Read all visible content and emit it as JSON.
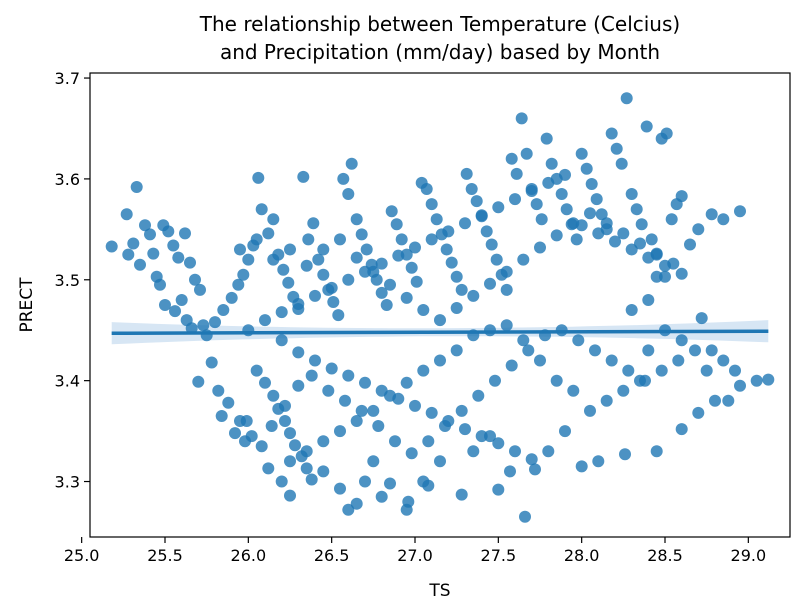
{
  "chart_data": {
    "type": "scatter",
    "title": "The relationship between Temperature (Celcius)",
    "subtitle": "and Precipitation (mm/day) based by Month",
    "xlabel": "TS",
    "ylabel": "PRECT",
    "xlim": [
      25.05,
      29.25
    ],
    "ylim": [
      3.245,
      3.705
    ],
    "xticks": [
      25.0,
      25.5,
      26.0,
      26.5,
      27.0,
      27.5,
      28.0,
      28.5,
      29.0
    ],
    "xtick_labels": [
      "25.0",
      "25.5",
      "26.0",
      "26.5",
      "27.0",
      "27.5",
      "28.0",
      "28.5",
      "29.0"
    ],
    "yticks": [
      3.3,
      3.4,
      3.5,
      3.6,
      3.7
    ],
    "ytick_labels": [
      "3.3",
      "3.4",
      "3.5",
      "3.6",
      "3.7"
    ],
    "grid": false,
    "legend": "none",
    "colors": {
      "points": "#1f77b4",
      "line": "#1f77b4",
      "band": "#c6dbef"
    },
    "regression": {
      "x": [
        25.18,
        29.12
      ],
      "y": [
        3.447,
        3.449
      ],
      "ci_half_width_ends": 0.011,
      "ci_half_width_mid": 0.004
    },
    "points": [
      [
        25.18,
        3.533
      ],
      [
        25.27,
        3.565
      ],
      [
        25.33,
        3.592
      ],
      [
        25.28,
        3.525
      ],
      [
        25.31,
        3.536
      ],
      [
        25.35,
        3.515
      ],
      [
        25.38,
        3.554
      ],
      [
        25.41,
        3.545
      ],
      [
        25.43,
        3.526
      ],
      [
        25.45,
        3.503
      ],
      [
        25.47,
        3.495
      ],
      [
        25.49,
        3.554
      ],
      [
        25.52,
        3.548
      ],
      [
        25.55,
        3.534
      ],
      [
        25.58,
        3.522
      ],
      [
        25.62,
        3.546
      ],
      [
        25.65,
        3.517
      ],
      [
        25.68,
        3.5
      ],
      [
        25.71,
        3.49
      ],
      [
        25.73,
        3.455
      ],
      [
        25.7,
        3.399
      ],
      [
        25.78,
        3.418
      ],
      [
        25.82,
        3.39
      ],
      [
        25.84,
        3.365
      ],
      [
        25.88,
        3.378
      ],
      [
        25.92,
        3.348
      ],
      [
        25.95,
        3.36
      ],
      [
        25.98,
        3.34
      ],
      [
        25.5,
        3.475
      ],
      [
        25.56,
        3.469
      ],
      [
        25.6,
        3.48
      ],
      [
        25.63,
        3.46
      ],
      [
        25.66,
        3.452
      ],
      [
        25.75,
        3.445
      ],
      [
        25.8,
        3.458
      ],
      [
        25.85,
        3.47
      ],
      [
        25.9,
        3.482
      ],
      [
        25.94,
        3.495
      ],
      [
        25.97,
        3.505
      ],
      [
        26.0,
        3.52
      ],
      [
        26.03,
        3.534
      ],
      [
        26.06,
        3.601
      ],
      [
        26.08,
        3.57
      ],
      [
        26.12,
        3.546
      ],
      [
        26.15,
        3.56
      ],
      [
        26.18,
        3.525
      ],
      [
        26.21,
        3.51
      ],
      [
        26.24,
        3.497
      ],
      [
        26.27,
        3.483
      ],
      [
        26.3,
        3.471
      ],
      [
        26.33,
        3.602
      ],
      [
        26.36,
        3.54
      ],
      [
        26.39,
        3.556
      ],
      [
        26.42,
        3.52
      ],
      [
        26.45,
        3.505
      ],
      [
        26.48,
        3.49
      ],
      [
        26.51,
        3.478
      ],
      [
        26.54,
        3.465
      ],
      [
        26.57,
        3.6
      ],
      [
        26.6,
        3.585
      ],
      [
        26.62,
        3.615
      ],
      [
        26.65,
        3.56
      ],
      [
        26.68,
        3.545
      ],
      [
        26.71,
        3.53
      ],
      [
        26.74,
        3.515
      ],
      [
        26.77,
        3.5
      ],
      [
        26.8,
        3.487
      ],
      [
        26.83,
        3.475
      ],
      [
        26.86,
        3.568
      ],
      [
        26.89,
        3.555
      ],
      [
        26.92,
        3.54
      ],
      [
        26.95,
        3.525
      ],
      [
        26.98,
        3.512
      ],
      [
        27.01,
        3.498
      ],
      [
        27.04,
        3.596
      ],
      [
        27.07,
        3.59
      ],
      [
        27.1,
        3.575
      ],
      [
        27.13,
        3.56
      ],
      [
        27.16,
        3.545
      ],
      [
        27.19,
        3.53
      ],
      [
        27.22,
        3.517
      ],
      [
        27.25,
        3.503
      ],
      [
        27.28,
        3.49
      ],
      [
        27.31,
        3.605
      ],
      [
        27.34,
        3.59
      ],
      [
        27.37,
        3.578
      ],
      [
        27.4,
        3.563
      ],
      [
        27.43,
        3.548
      ],
      [
        27.46,
        3.535
      ],
      [
        27.49,
        3.52
      ],
      [
        27.52,
        3.505
      ],
      [
        27.55,
        3.49
      ],
      [
        27.58,
        3.62
      ],
      [
        27.61,
        3.605
      ],
      [
        27.64,
        3.66
      ],
      [
        27.67,
        3.625
      ],
      [
        27.7,
        3.59
      ],
      [
        27.73,
        3.575
      ],
      [
        27.76,
        3.56
      ],
      [
        27.79,
        3.64
      ],
      [
        27.82,
        3.615
      ],
      [
        27.85,
        3.6
      ],
      [
        27.88,
        3.585
      ],
      [
        27.91,
        3.57
      ],
      [
        27.94,
        3.555
      ],
      [
        27.97,
        3.54
      ],
      [
        28.0,
        3.625
      ],
      [
        28.03,
        3.61
      ],
      [
        28.06,
        3.595
      ],
      [
        28.09,
        3.58
      ],
      [
        28.12,
        3.565
      ],
      [
        28.15,
        3.55
      ],
      [
        28.18,
        3.645
      ],
      [
        28.21,
        3.63
      ],
      [
        28.24,
        3.615
      ],
      [
        28.27,
        3.68
      ],
      [
        28.3,
        3.585
      ],
      [
        28.33,
        3.57
      ],
      [
        28.36,
        3.555
      ],
      [
        28.39,
        3.652
      ],
      [
        28.42,
        3.54
      ],
      [
        28.45,
        3.525
      ],
      [
        28.48,
        3.64
      ],
      [
        28.51,
        3.645
      ],
      [
        28.54,
        3.56
      ],
      [
        28.57,
        3.575
      ],
      [
        28.6,
        3.583
      ],
      [
        28.65,
        3.535
      ],
      [
        28.7,
        3.55
      ],
      [
        28.78,
        3.565
      ],
      [
        28.95,
        3.568
      ],
      [
        28.85,
        3.56
      ],
      [
        28.5,
        3.503
      ],
      [
        28.45,
        3.503
      ],
      [
        28.4,
        3.48
      ],
      [
        28.3,
        3.47
      ],
      [
        26.2,
        3.44
      ],
      [
        26.3,
        3.428
      ],
      [
        26.4,
        3.42
      ],
      [
        26.5,
        3.412
      ],
      [
        26.6,
        3.405
      ],
      [
        26.7,
        3.398
      ],
      [
        26.8,
        3.39
      ],
      [
        26.9,
        3.382
      ],
      [
        27.0,
        3.375
      ],
      [
        27.1,
        3.368
      ],
      [
        27.2,
        3.36
      ],
      [
        27.3,
        3.352
      ],
      [
        27.4,
        3.345
      ],
      [
        27.5,
        3.338
      ],
      [
        27.6,
        3.33
      ],
      [
        27.7,
        3.322
      ],
      [
        26.05,
        3.41
      ],
      [
        26.1,
        3.398
      ],
      [
        26.15,
        3.385
      ],
      [
        26.18,
        3.372
      ],
      [
        26.22,
        3.36
      ],
      [
        26.25,
        3.348
      ],
      [
        26.28,
        3.336
      ],
      [
        26.32,
        3.325
      ],
      [
        26.35,
        3.313
      ],
      [
        26.38,
        3.302
      ],
      [
        26.12,
        3.313
      ],
      [
        26.2,
        3.3
      ],
      [
        26.25,
        3.286
      ],
      [
        26.45,
        3.31
      ],
      [
        26.55,
        3.293
      ],
      [
        26.6,
        3.272
      ],
      [
        26.65,
        3.278
      ],
      [
        26.7,
        3.3
      ],
      [
        26.75,
        3.32
      ],
      [
        26.8,
        3.285
      ],
      [
        26.85,
        3.298
      ],
      [
        26.95,
        3.272
      ],
      [
        26.96,
        3.28
      ],
      [
        27.05,
        3.3
      ],
      [
        27.08,
        3.296
      ],
      [
        27.15,
        3.32
      ],
      [
        27.28,
        3.287
      ],
      [
        27.35,
        3.33
      ],
      [
        27.45,
        3.345
      ],
      [
        27.5,
        3.292
      ],
      [
        27.57,
        3.31
      ],
      [
        27.66,
        3.265
      ],
      [
        27.72,
        3.312
      ],
      [
        27.8,
        3.33
      ],
      [
        27.9,
        3.35
      ],
      [
        28.0,
        3.315
      ],
      [
        28.1,
        3.32
      ],
      [
        28.26,
        3.327
      ],
      [
        28.45,
        3.33
      ],
      [
        28.6,
        3.352
      ],
      [
        28.7,
        3.368
      ],
      [
        28.8,
        3.38
      ],
      [
        28.88,
        3.38
      ],
      [
        29.05,
        3.4
      ],
      [
        29.12,
        3.401
      ],
      [
        28.95,
        3.395
      ],
      [
        28.75,
        3.41
      ],
      [
        28.85,
        3.42
      ],
      [
        28.92,
        3.41
      ],
      [
        28.78,
        3.43
      ],
      [
        28.72,
        3.462
      ],
      [
        28.6,
        3.44
      ],
      [
        28.5,
        3.45
      ],
      [
        28.4,
        3.43
      ],
      [
        28.35,
        3.4
      ],
      [
        28.25,
        3.39
      ],
      [
        28.15,
        3.38
      ],
      [
        28.05,
        3.37
      ],
      [
        27.95,
        3.39
      ],
      [
        27.85,
        3.4
      ],
      [
        27.75,
        3.42
      ],
      [
        27.65,
        3.44
      ],
      [
        27.55,
        3.455
      ],
      [
        27.45,
        3.45
      ],
      [
        27.35,
        3.445
      ],
      [
        27.25,
        3.43
      ],
      [
        27.15,
        3.42
      ],
      [
        27.05,
        3.41
      ],
      [
        26.95,
        3.398
      ],
      [
        26.85,
        3.385
      ],
      [
        26.75,
        3.37
      ],
      [
        26.65,
        3.36
      ],
      [
        26.55,
        3.35
      ],
      [
        26.45,
        3.34
      ],
      [
        26.35,
        3.33
      ],
      [
        26.25,
        3.32
      ],
      [
        25.99,
        3.36
      ],
      [
        26.02,
        3.345
      ],
      [
        26.08,
        3.335
      ],
      [
        26.14,
        3.355
      ],
      [
        26.22,
        3.375
      ],
      [
        26.3,
        3.395
      ],
      [
        26.38,
        3.405
      ],
      [
        26.48,
        3.39
      ],
      [
        26.58,
        3.38
      ],
      [
        26.68,
        3.37
      ],
      [
        26.78,
        3.355
      ],
      [
        26.88,
        3.34
      ],
      [
        26.98,
        3.328
      ],
      [
        27.08,
        3.34
      ],
      [
        27.18,
        3.355
      ],
      [
        27.28,
        3.37
      ],
      [
        27.38,
        3.385
      ],
      [
        27.48,
        3.4
      ],
      [
        27.58,
        3.415
      ],
      [
        27.68,
        3.43
      ],
      [
        27.78,
        3.445
      ],
      [
        27.88,
        3.45
      ],
      [
        27.98,
        3.44
      ],
      [
        28.08,
        3.43
      ],
      [
        28.18,
        3.42
      ],
      [
        28.28,
        3.41
      ],
      [
        28.38,
        3.4
      ],
      [
        28.48,
        3.41
      ],
      [
        28.58,
        3.42
      ],
      [
        28.68,
        3.43
      ],
      [
        26.0,
        3.45
      ],
      [
        26.1,
        3.46
      ],
      [
        26.2,
        3.468
      ],
      [
        26.3,
        3.476
      ],
      [
        26.4,
        3.484
      ],
      [
        26.5,
        3.492
      ],
      [
        26.6,
        3.5
      ],
      [
        26.7,
        3.508
      ],
      [
        26.8,
        3.516
      ],
      [
        26.9,
        3.524
      ],
      [
        27.0,
        3.532
      ],
      [
        27.1,
        3.54
      ],
      [
        27.2,
        3.548
      ],
      [
        27.3,
        3.556
      ],
      [
        27.4,
        3.564
      ],
      [
        27.5,
        3.572
      ],
      [
        27.6,
        3.58
      ],
      [
        27.7,
        3.588
      ],
      [
        27.8,
        3.596
      ],
      [
        27.9,
        3.604
      ],
      [
        28.0,
        3.554
      ],
      [
        28.1,
        3.546
      ],
      [
        28.2,
        3.538
      ],
      [
        28.3,
        3.53
      ],
      [
        28.4,
        3.522
      ],
      [
        28.5,
        3.514
      ],
      [
        28.6,
        3.506
      ],
      [
        25.95,
        3.53
      ],
      [
        26.05,
        3.54
      ],
      [
        26.15,
        3.52
      ],
      [
        26.25,
        3.53
      ],
      [
        26.35,
        3.514
      ],
      [
        26.45,
        3.53
      ],
      [
        26.55,
        3.54
      ],
      [
        26.65,
        3.522
      ],
      [
        26.75,
        3.508
      ],
      [
        26.85,
        3.495
      ],
      [
        26.95,
        3.482
      ],
      [
        27.05,
        3.47
      ],
      [
        27.15,
        3.46
      ],
      [
        27.25,
        3.472
      ],
      [
        27.35,
        3.484
      ],
      [
        27.45,
        3.496
      ],
      [
        27.55,
        3.508
      ],
      [
        27.65,
        3.52
      ],
      [
        27.75,
        3.532
      ],
      [
        27.85,
        3.544
      ],
      [
        27.95,
        3.556
      ],
      [
        28.05,
        3.566
      ],
      [
        28.15,
        3.556
      ],
      [
        28.25,
        3.546
      ],
      [
        28.35,
        3.536
      ],
      [
        28.45,
        3.526
      ],
      [
        28.55,
        3.516
      ]
    ]
  }
}
